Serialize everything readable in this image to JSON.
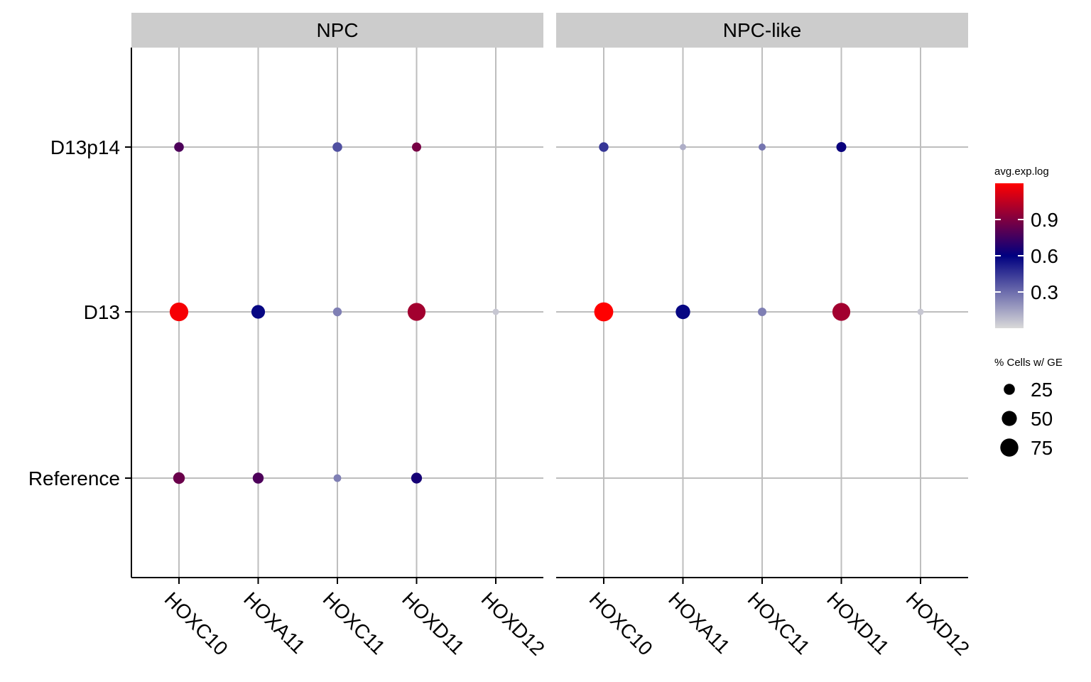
{
  "chart_data": {
    "type": "scatter",
    "subtype": "dot-plot",
    "facets": [
      "NPC",
      "NPC-like"
    ],
    "x_categories": [
      "HOXC10",
      "HOXA11",
      "HOXC11",
      "HOXD11",
      "HOXD12"
    ],
    "y_categories": [
      "D13p14",
      "D13",
      "Reference"
    ],
    "xlabel": "",
    "ylabel": "",
    "grid": true,
    "color_legend": {
      "title": "avg.exp.log",
      "ticks": [
        "0.9",
        "0.6",
        "0.3"
      ],
      "tick_values": [
        0.9,
        0.6,
        0.3
      ],
      "range": [
        0.0,
        1.2
      ],
      "colors": [
        "#d9d9d9",
        "#000080",
        "#ff0000"
      ]
    },
    "size_legend": {
      "title": "% Cells w/ GE",
      "labels": [
        "25",
        "50",
        "75"
      ],
      "values": [
        25,
        50,
        75
      ]
    },
    "legend_placement": "right",
    "points": [
      {
        "facet": "NPC",
        "gene": "HOXC10",
        "group": "D13p14",
        "avg_exp_log": 0.78,
        "pct": 18
      },
      {
        "facet": "NPC",
        "gene": "HOXC11",
        "group": "D13p14",
        "avg_exp_log": 0.38,
        "pct": 18
      },
      {
        "facet": "NPC",
        "gene": "HOXD11",
        "group": "D13p14",
        "avg_exp_log": 0.88,
        "pct": 16
      },
      {
        "facet": "NPC",
        "gene": "HOXC10",
        "group": "D13",
        "avg_exp_log": 1.18,
        "pct": 80
      },
      {
        "facet": "NPC",
        "gene": "HOXA11",
        "group": "D13",
        "avg_exp_log": 0.58,
        "pct": 40
      },
      {
        "facet": "NPC",
        "gene": "HOXC11",
        "group": "D13",
        "avg_exp_log": 0.25,
        "pct": 14
      },
      {
        "facet": "NPC",
        "gene": "HOXD11",
        "group": "D13",
        "avg_exp_log": 0.98,
        "pct": 74
      },
      {
        "facet": "NPC",
        "gene": "HOXD12",
        "group": "D13",
        "avg_exp_log": 0.05,
        "pct": 6
      },
      {
        "facet": "NPC",
        "gene": "HOXC10",
        "group": "Reference",
        "avg_exp_log": 0.85,
        "pct": 28
      },
      {
        "facet": "NPC",
        "gene": "HOXA11",
        "group": "Reference",
        "avg_exp_log": 0.78,
        "pct": 24
      },
      {
        "facet": "NPC",
        "gene": "HOXC11",
        "group": "Reference",
        "avg_exp_log": 0.25,
        "pct": 10
      },
      {
        "facet": "NPC",
        "gene": "HOXD11",
        "group": "Reference",
        "avg_exp_log": 0.65,
        "pct": 23
      },
      {
        "facet": "NPC-like",
        "gene": "HOXC10",
        "group": "D13p14",
        "avg_exp_log": 0.45,
        "pct": 17
      },
      {
        "facet": "NPC-like",
        "gene": "HOXA11",
        "group": "D13p14",
        "avg_exp_log": 0.12,
        "pct": 6
      },
      {
        "facet": "NPC-like",
        "gene": "HOXC11",
        "group": "D13p14",
        "avg_exp_log": 0.28,
        "pct": 8
      },
      {
        "facet": "NPC-like",
        "gene": "HOXD11",
        "group": "D13p14",
        "avg_exp_log": 0.62,
        "pct": 19
      },
      {
        "facet": "NPC-like",
        "gene": "HOXC10",
        "group": "D13",
        "avg_exp_log": 1.2,
        "pct": 84
      },
      {
        "facet": "NPC-like",
        "gene": "HOXA11",
        "group": "D13",
        "avg_exp_log": 0.58,
        "pct": 46
      },
      {
        "facet": "NPC-like",
        "gene": "HOXC11",
        "group": "D13",
        "avg_exp_log": 0.25,
        "pct": 13
      },
      {
        "facet": "NPC-like",
        "gene": "HOXD11",
        "group": "D13",
        "avg_exp_log": 0.98,
        "pct": 74
      },
      {
        "facet": "NPC-like",
        "gene": "HOXD12",
        "group": "D13",
        "avg_exp_log": 0.05,
        "pct": 6
      }
    ]
  }
}
